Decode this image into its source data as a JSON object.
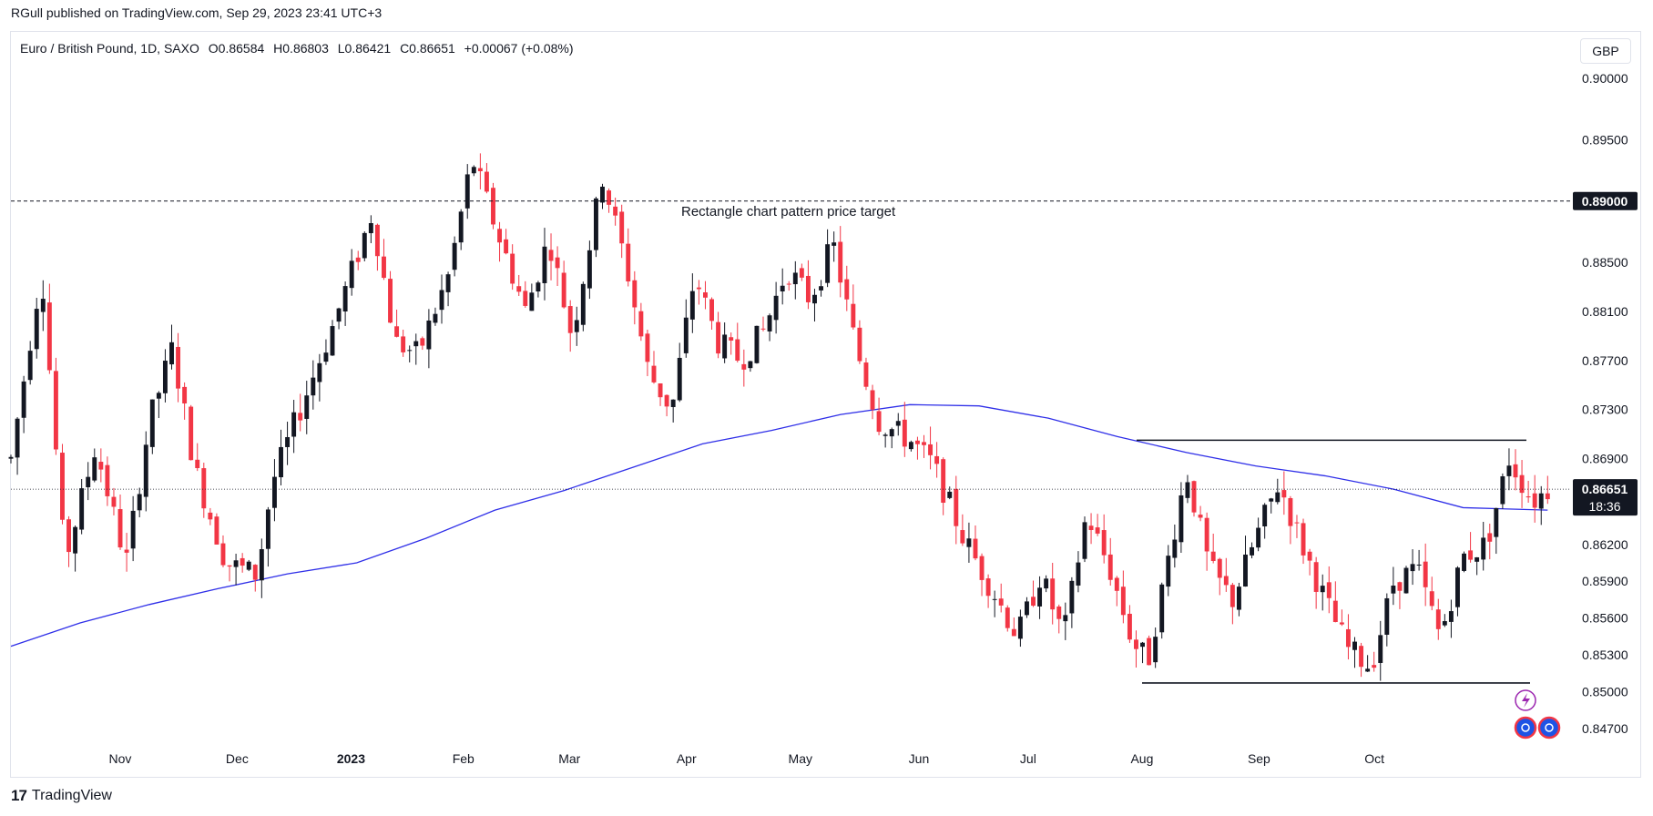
{
  "header": {
    "published": "RGull published on TradingView.com, Sep 29, 2023 23:41 UTC+3"
  },
  "legend": {
    "symbol": "Euro / British Pound, 1D, SAXO",
    "open": "O0.86584",
    "high": "H0.86803",
    "low": "L0.86421",
    "close": "C0.86651",
    "change": "+0.00067 (+0.08%)"
  },
  "currency_button": "GBP",
  "footer": {
    "brand": "TradingView",
    "logo": "17"
  },
  "colors": {
    "up": "#131722",
    "down": "#f23645",
    "ma": "#2f2fe8",
    "badge": "#131722"
  },
  "chart_data": {
    "type": "candlestick",
    "instrument": "EUR/GBP",
    "interval": "1D",
    "ylim": [
      0.8455,
      0.9012
    ],
    "y_ticks": [
      "0.90000",
      "0.89500",
      "0.88500",
      "0.88100",
      "0.87700",
      "0.87300",
      "0.86900",
      "0.86200",
      "0.85900",
      "0.85600",
      "0.85300",
      "0.85000",
      "0.84700"
    ],
    "x_ticks": [
      {
        "label": "Nov",
        "bold": false
      },
      {
        "label": "Dec",
        "bold": false
      },
      {
        "label": "2023",
        "bold": true
      },
      {
        "label": "Feb",
        "bold": false
      },
      {
        "label": "Mar",
        "bold": false
      },
      {
        "label": "Apr",
        "bold": false
      },
      {
        "label": "May",
        "bold": false
      },
      {
        "label": "Jun",
        "bold": false
      },
      {
        "label": "Jul",
        "bold": false
      },
      {
        "label": "Aug",
        "bold": false
      },
      {
        "label": "Sep",
        "bold": false
      },
      {
        "label": "Oct",
        "bold": false
      }
    ],
    "last_price": "0.86651",
    "countdown": "18:36",
    "price_target": {
      "value": 0.89,
      "label": "0.89000",
      "text": "Rectangle chart pattern price target"
    },
    "rectangle": {
      "top": 0.8705,
      "bottom": 0.8507
    },
    "ma_points": [
      {
        "t": 0,
        "v": 0.8537
      },
      {
        "t": 0.045,
        "v": 0.8556
      },
      {
        "t": 0.09,
        "v": 0.8571
      },
      {
        "t": 0.135,
        "v": 0.8584
      },
      {
        "t": 0.18,
        "v": 0.8596
      },
      {
        "t": 0.225,
        "v": 0.8605
      },
      {
        "t": 0.27,
        "v": 0.8625
      },
      {
        "t": 0.315,
        "v": 0.8648
      },
      {
        "t": 0.36,
        "v": 0.8664
      },
      {
        "t": 0.405,
        "v": 0.8683
      },
      {
        "t": 0.45,
        "v": 0.8702
      },
      {
        "t": 0.495,
        "v": 0.8713
      },
      {
        "t": 0.54,
        "v": 0.8726
      },
      {
        "t": 0.585,
        "v": 0.8734
      },
      {
        "t": 0.63,
        "v": 0.8733
      },
      {
        "t": 0.675,
        "v": 0.8723
      },
      {
        "t": 0.72,
        "v": 0.8708
      },
      {
        "t": 0.765,
        "v": 0.8695
      },
      {
        "t": 0.81,
        "v": 0.8684
      },
      {
        "t": 0.855,
        "v": 0.8676
      },
      {
        "t": 0.9,
        "v": 0.8665
      },
      {
        "t": 0.945,
        "v": 0.865
      },
      {
        "t": 1,
        "v": 0.8648
      }
    ],
    "anchors": [
      {
        "t": 0,
        "v": 0.869
      },
      {
        "t": 0.02,
        "v": 0.8845
      },
      {
        "t": 0.035,
        "v": 0.8605
      },
      {
        "t": 0.055,
        "v": 0.87
      },
      {
        "t": 0.075,
        "v": 0.8605
      },
      {
        "t": 0.09,
        "v": 0.872
      },
      {
        "t": 0.105,
        "v": 0.878
      },
      {
        "t": 0.12,
        "v": 0.868
      },
      {
        "t": 0.14,
        "v": 0.8605
      },
      {
        "t": 0.16,
        "v": 0.8595
      },
      {
        "t": 0.17,
        "v": 0.867
      },
      {
        "t": 0.185,
        "v": 0.872
      },
      {
        "t": 0.21,
        "v": 0.88
      },
      {
        "t": 0.235,
        "v": 0.889
      },
      {
        "t": 0.25,
        "v": 0.8785
      },
      {
        "t": 0.265,
        "v": 0.8775
      },
      {
        "t": 0.285,
        "v": 0.884
      },
      {
        "t": 0.3,
        "v": 0.8935
      },
      {
        "t": 0.315,
        "v": 0.888
      },
      {
        "t": 0.335,
        "v": 0.881
      },
      {
        "t": 0.35,
        "v": 0.887
      },
      {
        "t": 0.365,
        "v": 0.879
      },
      {
        "t": 0.385,
        "v": 0.892
      },
      {
        "t": 0.4,
        "v": 0.885
      },
      {
        "t": 0.415,
        "v": 0.876
      },
      {
        "t": 0.43,
        "v": 0.873
      },
      {
        "t": 0.445,
        "v": 0.884
      },
      {
        "t": 0.46,
        "v": 0.8785
      },
      {
        "t": 0.475,
        "v": 0.877
      },
      {
        "t": 0.49,
        "v": 0.8795
      },
      {
        "t": 0.505,
        "v": 0.8845
      },
      {
        "t": 0.52,
        "v": 0.882
      },
      {
        "t": 0.535,
        "v": 0.8865
      },
      {
        "t": 0.55,
        "v": 0.878
      },
      {
        "t": 0.565,
        "v": 0.872
      },
      {
        "t": 0.585,
        "v": 0.8705
      },
      {
        "t": 0.6,
        "v": 0.8685
      },
      {
        "t": 0.62,
        "v": 0.8625
      },
      {
        "t": 0.64,
        "v": 0.858
      },
      {
        "t": 0.655,
        "v": 0.8545
      },
      {
        "t": 0.67,
        "v": 0.8595
      },
      {
        "t": 0.685,
        "v": 0.8545
      },
      {
        "t": 0.7,
        "v": 0.8645
      },
      {
        "t": 0.715,
        "v": 0.86
      },
      {
        "t": 0.73,
        "v": 0.854
      },
      {
        "t": 0.74,
        "v": 0.8525
      },
      {
        "t": 0.755,
        "v": 0.862
      },
      {
        "t": 0.765,
        "v": 0.868
      },
      {
        "t": 0.78,
        "v": 0.86
      },
      {
        "t": 0.795,
        "v": 0.8575
      },
      {
        "t": 0.81,
        "v": 0.8625
      },
      {
        "t": 0.825,
        "v": 0.867
      },
      {
        "t": 0.84,
        "v": 0.862
      },
      {
        "t": 0.855,
        "v": 0.8575
      },
      {
        "t": 0.87,
        "v": 0.8535
      },
      {
        "t": 0.885,
        "v": 0.852
      },
      {
        "t": 0.9,
        "v": 0.859
      },
      {
        "t": 0.915,
        "v": 0.86
      },
      {
        "t": 0.93,
        "v": 0.8545
      },
      {
        "t": 0.945,
        "v": 0.861
      },
      {
        "t": 0.96,
        "v": 0.862
      },
      {
        "t": 0.975,
        "v": 0.869
      },
      {
        "t": 0.99,
        "v": 0.8655
      },
      {
        "t": 1,
        "v": 0.8665
      }
    ]
  }
}
